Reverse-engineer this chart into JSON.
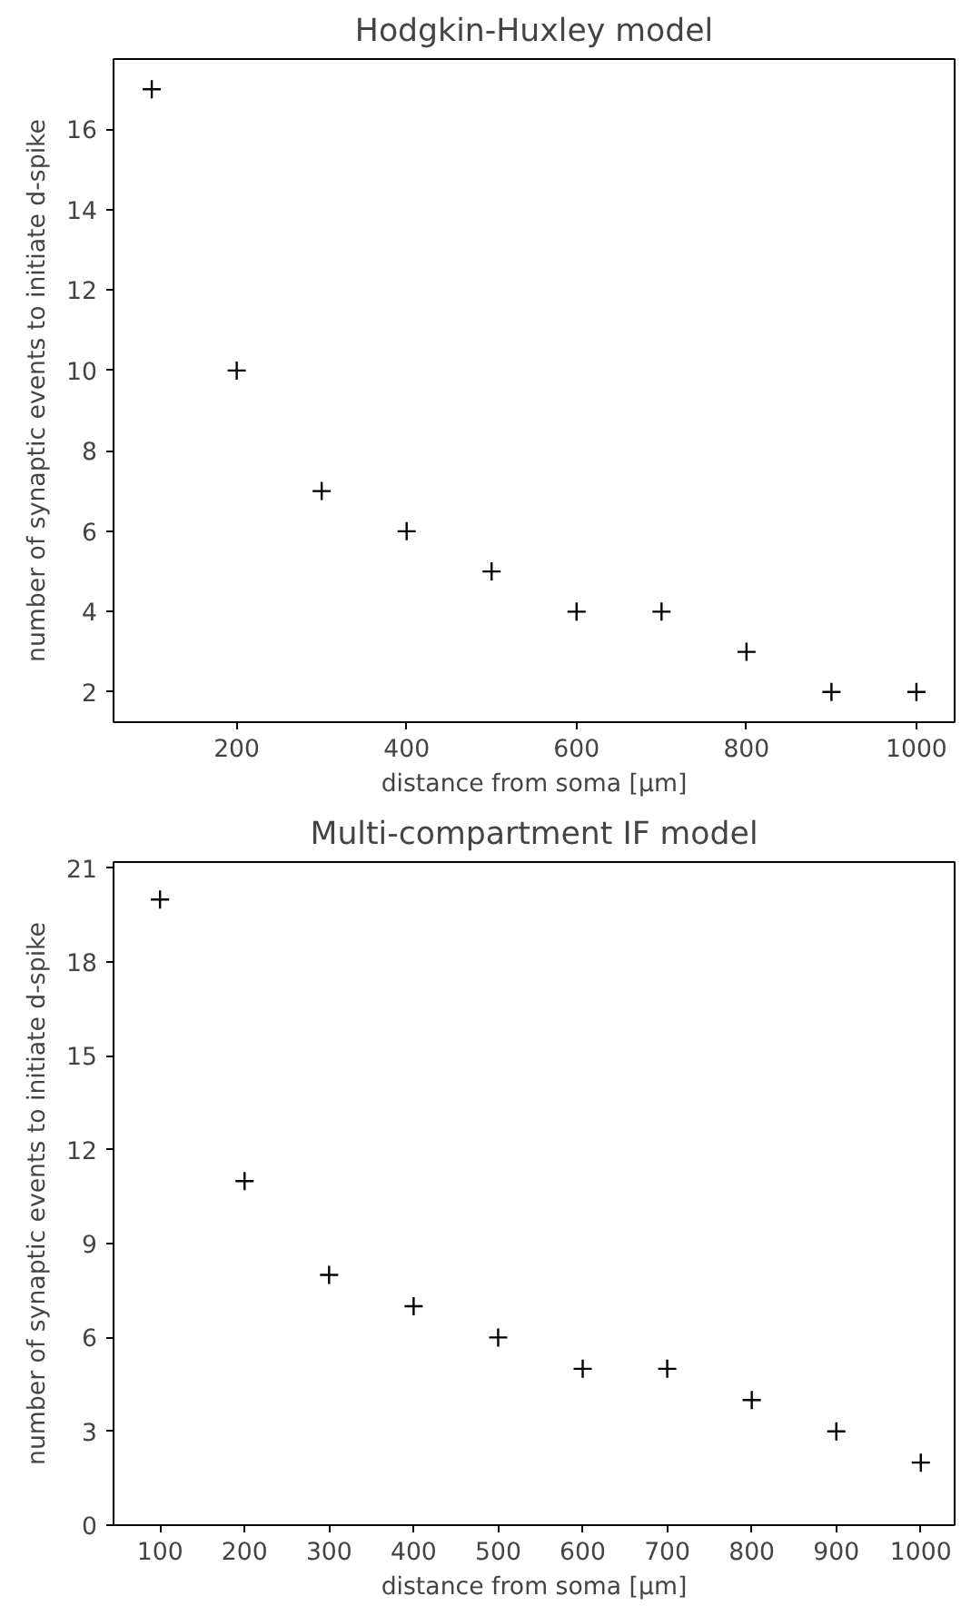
{
  "chart_data": [
    {
      "type": "scatter",
      "title": "Hodgkin-Huxley model",
      "xlabel": "distance from soma [μm]",
      "ylabel": "number of synaptic events to initiate d-spike",
      "x": [
        100,
        200,
        300,
        400,
        500,
        600,
        700,
        800,
        900,
        1000
      ],
      "series": [
        {
          "color": "#000000",
          "values": [
            17,
            10,
            7,
            6,
            5,
            4,
            4,
            3,
            2,
            2
          ]
        }
      ],
      "xlim": [
        55,
        1045
      ],
      "ylim": [
        1.25,
        17.75
      ],
      "xticks": [
        200,
        400,
        600,
        800,
        1000
      ],
      "yticks": [
        2,
        4,
        6,
        8,
        10,
        12,
        14,
        16
      ],
      "marker": "cross",
      "grid": false
    },
    {
      "type": "scatter",
      "title": "Multi-compartment IF model",
      "xlabel": "distance from soma [μm]",
      "ylabel": "number of synaptic events to initiate d-spike",
      "x": [
        100,
        200,
        300,
        400,
        500,
        600,
        700,
        800,
        900,
        1000
      ],
      "series": [
        {
          "color": "#000000",
          "values": [
            20,
            11,
            8,
            7,
            6,
            5,
            5,
            4,
            3,
            2
          ]
        }
      ],
      "xlim": [
        45,
        1040
      ],
      "ylim": [
        0,
        21.2
      ],
      "xticks": [
        100,
        200,
        300,
        400,
        500,
        600,
        700,
        800,
        900,
        1000
      ],
      "yticks": [
        0,
        3,
        6,
        9,
        12,
        15,
        18,
        21
      ],
      "marker": "cross",
      "grid": false
    }
  ]
}
